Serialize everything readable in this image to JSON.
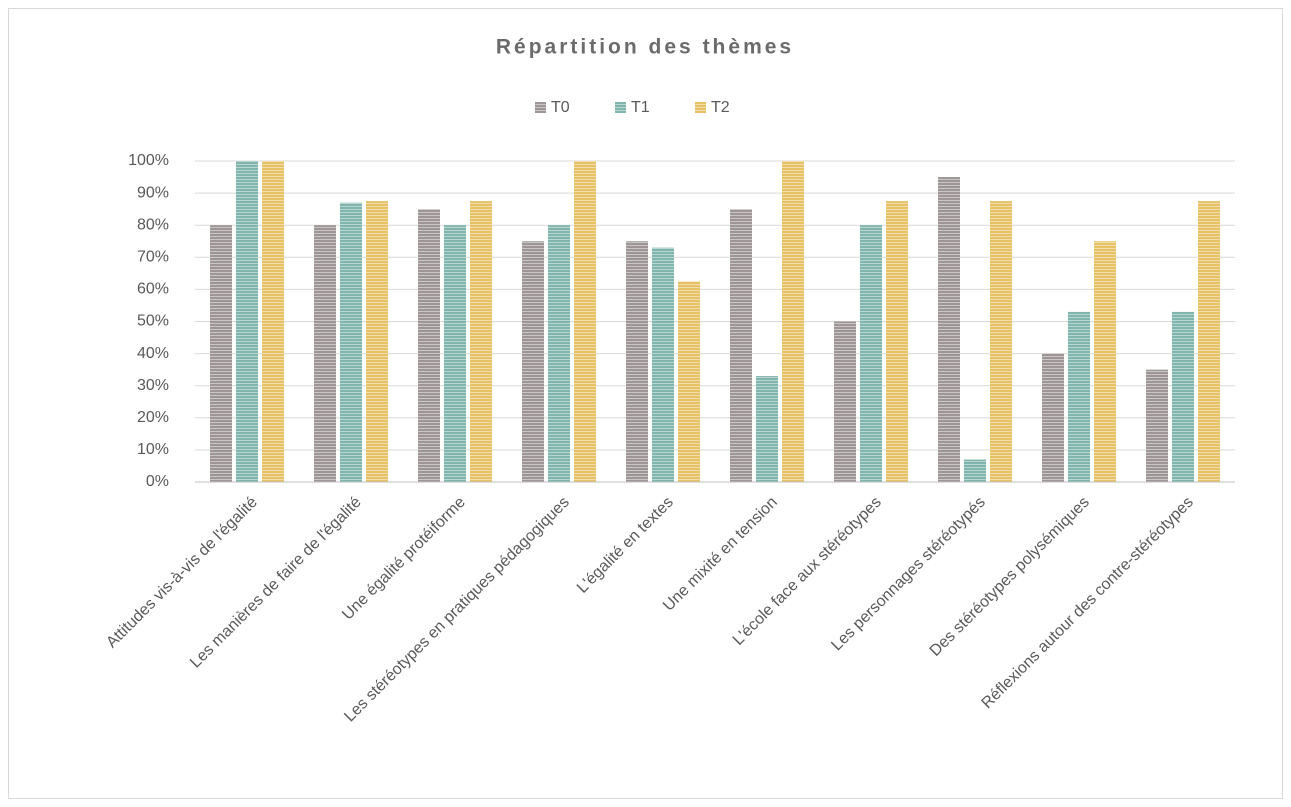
{
  "chart_data": {
    "type": "bar",
    "title": "Répartition des thèmes",
    "categories": [
      "Attitudes vis-à-vis de l'égalité",
      "Les manières de faire de l'égalité",
      "Une égalité protéiforme",
      "Les stéréotypes en pratiques pédagogiques",
      "L'égalité en textes",
      "Une mixité en tension",
      "L'école face aux stéréotypes",
      "Les personnages stéréotypés",
      "Des stéréotypes polysémiques",
      "Réflexions autour des contre-stéréotypes"
    ],
    "series": [
      {
        "name": "T0",
        "color": "#9e9696",
        "values": [
          80,
          80,
          85,
          75,
          75,
          85,
          50,
          95,
          40,
          35
        ]
      },
      {
        "name": "T1",
        "color": "#7fb5ac",
        "values": [
          100,
          87,
          80,
          80,
          73,
          33,
          80,
          7,
          53,
          53
        ]
      },
      {
        "name": "T2",
        "color": "#e6c166",
        "values": [
          100,
          87.5,
          87.5,
          100,
          62.5,
          100,
          87.5,
          87.5,
          75,
          87.5
        ]
      }
    ],
    "ylim": [
      0,
      100
    ],
    "yticks": [
      {
        "value": 0,
        "label": "0%"
      },
      {
        "value": 10,
        "label": "10%"
      },
      {
        "value": 20,
        "label": "20%"
      },
      {
        "value": 30,
        "label": "30%"
      },
      {
        "value": 40,
        "label": "40%"
      },
      {
        "value": 50,
        "label": "50%"
      },
      {
        "value": 60,
        "label": "60%"
      },
      {
        "value": 70,
        "label": "70%"
      },
      {
        "value": 80,
        "label": "80%"
      },
      {
        "value": 90,
        "label": "90%"
      },
      {
        "value": 100,
        "label": "100%"
      }
    ],
    "grid": true,
    "legend": "top"
  }
}
